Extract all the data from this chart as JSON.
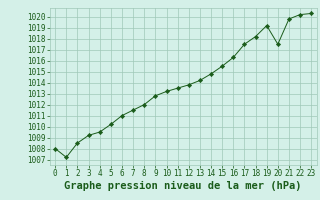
{
  "x": [
    0,
    1,
    2,
    3,
    4,
    5,
    6,
    7,
    8,
    9,
    10,
    11,
    12,
    13,
    14,
    15,
    16,
    17,
    18,
    19,
    20,
    21,
    22,
    23
  ],
  "y": [
    1008.0,
    1007.2,
    1008.5,
    1009.2,
    1009.5,
    1010.2,
    1011.0,
    1011.5,
    1012.0,
    1012.8,
    1013.2,
    1013.5,
    1013.8,
    1014.2,
    1014.8,
    1015.5,
    1016.3,
    1017.5,
    1018.2,
    1019.2,
    1017.5,
    1019.8,
    1020.2,
    1020.3
  ],
  "line_color": "#1a5c1a",
  "marker_color": "#1a5c1a",
  "bg_color": "#d4f0e8",
  "grid_color": "#a0c8b8",
  "title": "Graphe pression niveau de la mer (hPa)",
  "ylabel_vals": [
    1007,
    1008,
    1009,
    1010,
    1011,
    1012,
    1013,
    1014,
    1015,
    1016,
    1017,
    1018,
    1019,
    1020
  ],
  "ylim": [
    1006.5,
    1020.8
  ],
  "xlim": [
    -0.5,
    23.5
  ],
  "title_fontsize": 7.5,
  "tick_fontsize": 5.5
}
